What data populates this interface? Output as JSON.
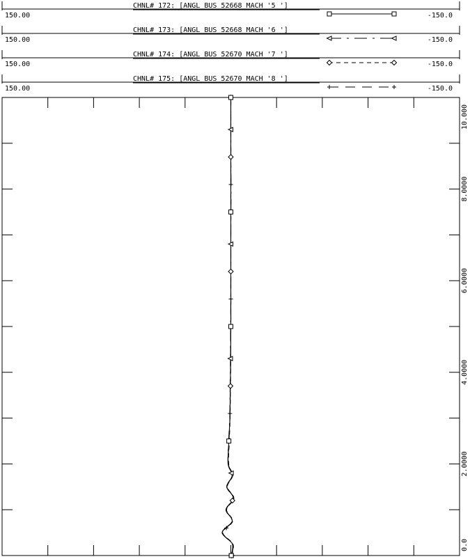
{
  "chart_data": {
    "type": "line",
    "title": "",
    "xlabel": "",
    "ylabel": "",
    "x_axis": {
      "orientation": "vertical",
      "range": [
        0.0,
        10.0
      ],
      "tick_labels": [
        "0.0",
        "2.0000",
        "4.0000",
        "6.0000",
        "8.0000",
        "10.000"
      ]
    },
    "y_axis": {
      "orientation": "horizontal",
      "range": [
        150.0,
        -150.0
      ]
    },
    "legend_placement": "top",
    "series": [
      {
        "name": "CHNL# 175: [ANGL BUS 52670 MACH '8 ']",
        "left_value": "150.00",
        "right_value": "-150.0",
        "marker": "plus",
        "dash": "long-dash",
        "x": [
          0.0,
          0.25,
          0.5,
          0.75,
          1.0,
          1.25,
          1.5,
          1.75,
          2.0,
          2.5,
          3.0,
          3.5,
          4.0,
          5.0,
          6.0,
          7.0,
          8.0,
          9.0,
          10.0
        ],
        "values": [
          -0.4,
          -1.2,
          5.5,
          -1.0,
          3.0,
          -1.8,
          2.5,
          -1.0,
          1.6,
          1.2,
          0.6,
          0.4,
          0.2,
          0.0,
          0.0,
          0.0,
          0.0,
          0.0,
          0.0
        ]
      },
      {
        "name": "CHNL# 174: [ANGL BUS 52670 MACH '7 ']",
        "left_value": "150.00",
        "right_value": "-150.0",
        "marker": "diamond",
        "dash": "short-dash",
        "x": [
          0.0,
          0.25,
          0.5,
          0.75,
          1.0,
          1.25,
          1.5,
          1.75,
          2.0,
          2.5,
          3.0,
          3.5,
          4.0,
          5.0,
          6.0,
          7.0,
          8.0,
          9.0,
          10.0
        ],
        "values": [
          -0.6,
          -1.4,
          5.3,
          -1.2,
          2.8,
          -2.0,
          2.3,
          -1.2,
          1.4,
          1.0,
          0.5,
          0.3,
          0.1,
          0.0,
          0.0,
          0.0,
          0.0,
          0.0,
          0.0
        ]
      },
      {
        "name": "CHNL# 173: [ANGL BUS 52668 MACH '6 ']",
        "left_value": "150.00",
        "right_value": "-150.0",
        "marker": "triangle",
        "dash": "dash-dot",
        "x": [
          0.0,
          0.25,
          0.5,
          0.75,
          1.0,
          1.25,
          1.5,
          1.75,
          2.0,
          2.5,
          3.0,
          3.5,
          4.0,
          5.0,
          6.0,
          7.0,
          8.0,
          9.0,
          10.0
        ],
        "values": [
          -0.2,
          -1.0,
          5.7,
          -0.8,
          3.2,
          -1.6,
          2.7,
          -0.8,
          1.8,
          1.4,
          0.7,
          0.5,
          0.3,
          0.1,
          0.0,
          0.0,
          -0.1,
          0.0,
          0.0
        ]
      },
      {
        "name": "CHNL# 172: [ANGL BUS 52668 MACH '5 ']",
        "left_value": "150.00",
        "right_value": "-150.0",
        "marker": "square",
        "dash": "solid",
        "x": [
          0.0,
          0.25,
          0.5,
          0.75,
          1.0,
          1.25,
          1.5,
          1.75,
          2.0,
          2.5,
          3.0,
          3.5,
          4.0,
          5.0,
          6.0,
          7.0,
          8.0,
          9.0,
          10.0
        ],
        "values": [
          -0.3,
          -1.1,
          5.6,
          -0.9,
          3.1,
          -1.7,
          2.6,
          -0.9,
          1.7,
          1.3,
          0.6,
          0.4,
          0.2,
          0.0,
          0.0,
          0.0,
          0.0,
          0.0,
          0.0
        ]
      }
    ]
  }
}
